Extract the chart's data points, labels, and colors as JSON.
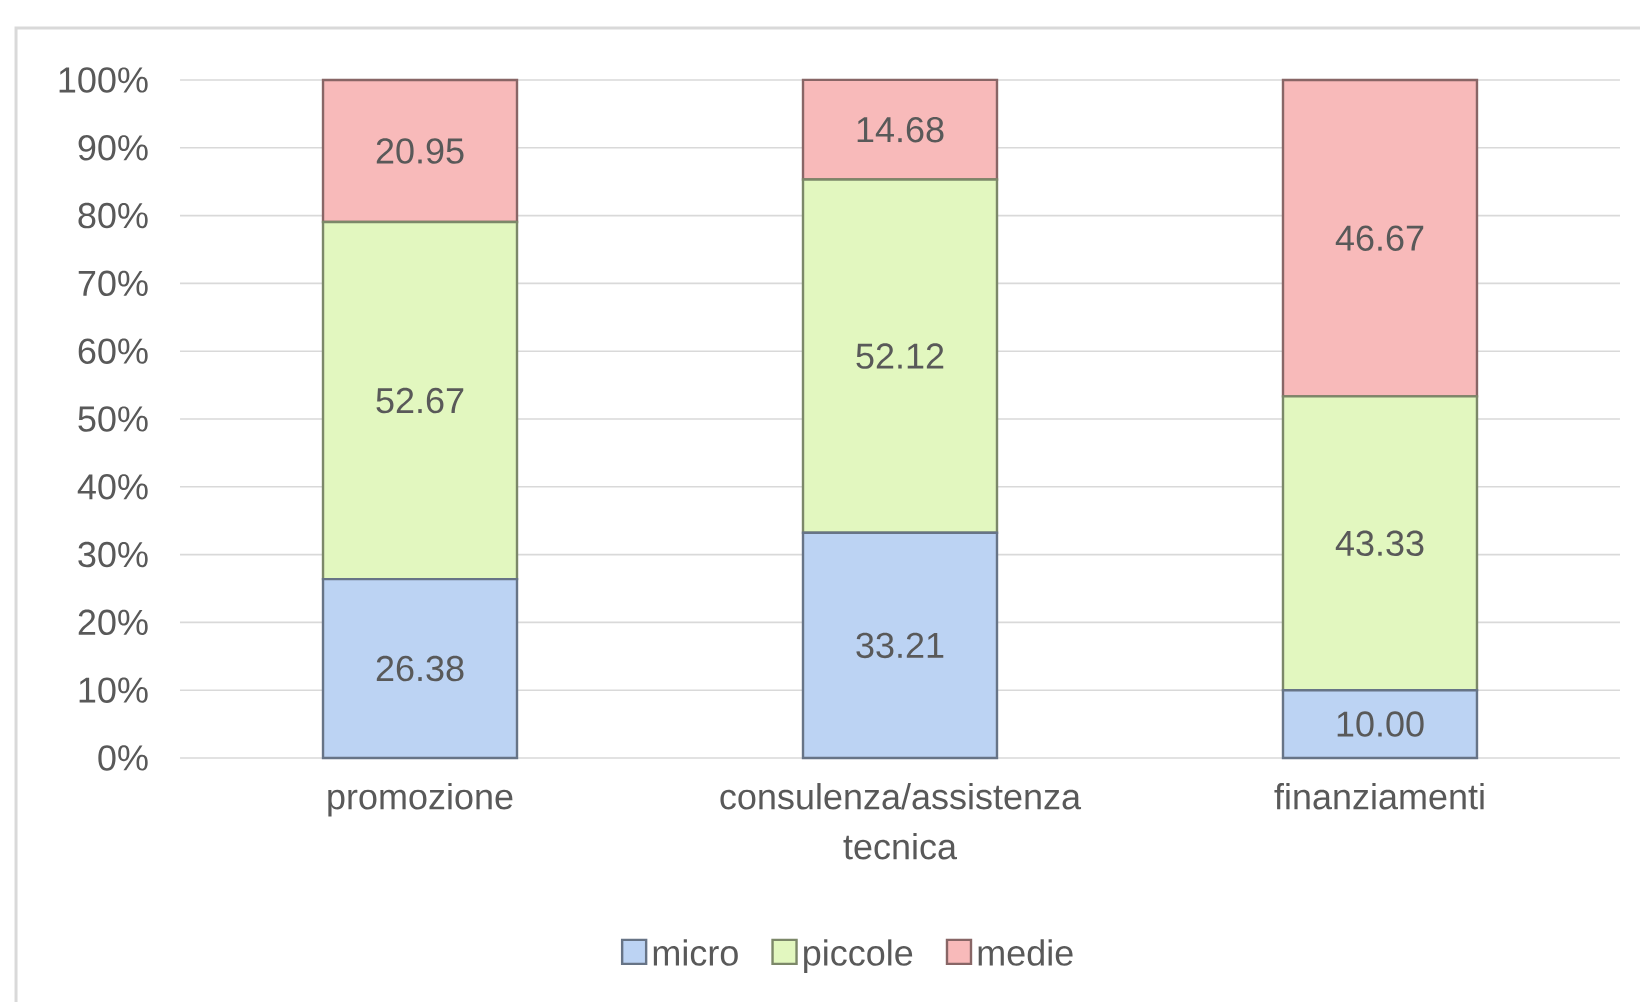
{
  "chart_data": {
    "type": "bar",
    "stacked": true,
    "categories": [
      "promozione",
      "consulenza/assistenza tecnica",
      "finanziamenti"
    ],
    "series": [
      {
        "name": "micro",
        "color": "#bcd3f3",
        "values": [
          26.38,
          33.21,
          10.0
        ],
        "value_labels": [
          "26.38",
          "33.21",
          "10.00"
        ]
      },
      {
        "name": "piccole",
        "color": "#e2f7bf",
        "values": [
          52.67,
          52.12,
          43.33
        ],
        "value_labels": [
          "52.67",
          "52.12",
          "43.33"
        ]
      },
      {
        "name": "medie",
        "color": "#f8baba",
        "values": [
          20.95,
          14.68,
          46.67
        ],
        "value_labels": [
          "20.95",
          "14.68",
          "46.67"
        ]
      }
    ],
    "ylim": [
      0,
      100
    ],
    "yticks": [
      {
        "value": 0,
        "label": "0%"
      },
      {
        "value": 10,
        "label": "10%"
      },
      {
        "value": 20,
        "label": "20%"
      },
      {
        "value": 30,
        "label": "30%"
      },
      {
        "value": 40,
        "label": "40%"
      },
      {
        "value": 50,
        "label": "50%"
      },
      {
        "value": 60,
        "label": "60%"
      },
      {
        "value": 70,
        "label": "70%"
      },
      {
        "value": 80,
        "label": "80%"
      },
      {
        "value": 90,
        "label": "90%"
      },
      {
        "value": 100,
        "label": "100%"
      }
    ],
    "grid": "y",
    "legend": "bottom"
  }
}
